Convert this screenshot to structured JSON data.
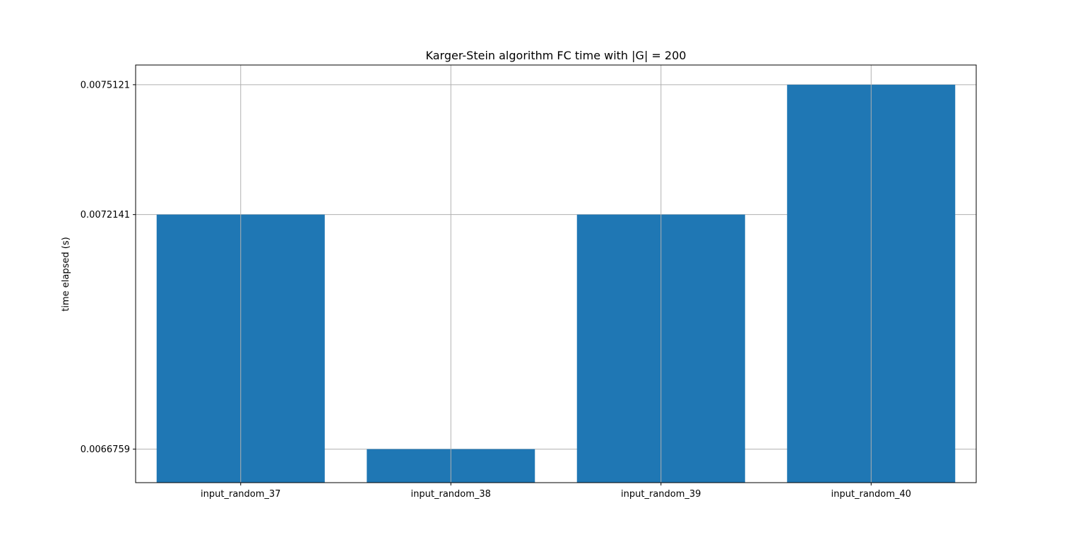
{
  "chart_data": {
    "type": "bar",
    "title": "Karger-Stein algorithm FC time with |G| = 200",
    "xlabel": "",
    "ylabel": "time elapsed (s)",
    "categories": [
      "input_random_37",
      "input_random_38",
      "input_random_39",
      "input_random_40"
    ],
    "values": [
      0.0072141,
      0.0066759,
      0.0072141,
      0.0075121
    ],
    "yticks": [
      0.0066759,
      0.0072141,
      0.0075121
    ],
    "ytick_labels": [
      "0.0066759",
      "0.0072141",
      "0.0075121"
    ],
    "ylim": [
      0.006599,
      0.0075573
    ],
    "grid": true,
    "bar_color": "#1f77b4",
    "grid_color": "#b0b0b0"
  }
}
